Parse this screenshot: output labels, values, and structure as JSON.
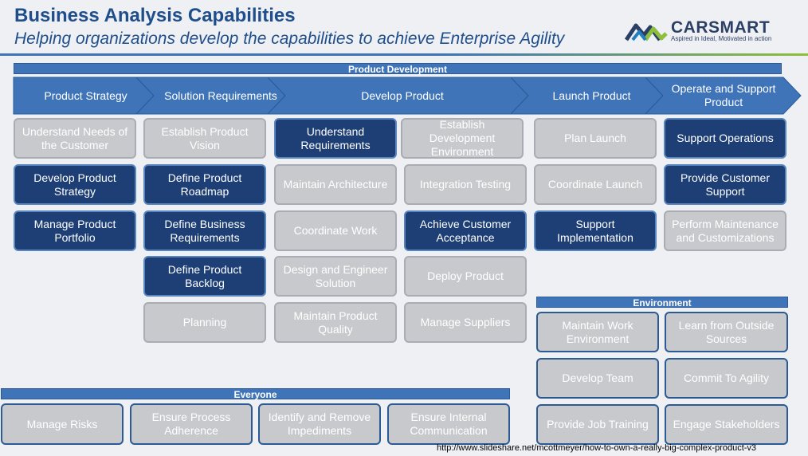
{
  "header": {
    "title": "Business Analysis Capabilities",
    "subtitle": "Helping organizations develop the capabilities to achieve Enterprise Agility"
  },
  "logo": {
    "name": "CARSMART",
    "tagline": "Aspired in Ideal, Motivated in action",
    "icon": "carsmart-mountain-logo-icon"
  },
  "bands": {
    "product_development": "Product Development",
    "environment": "Environment",
    "everyone": "Everyone"
  },
  "phases": [
    "Product Strategy",
    "Solution Requirements",
    "Develop Product",
    "Launch Product",
    "Operate and Support Product"
  ],
  "capabilities": {
    "product_strategy": [
      "Understand Needs of the Customer",
      "Develop Product Strategy",
      "Manage Product Portfolio"
    ],
    "solution_requirements": [
      "Establish Product Vision",
      "Define Product Roadmap",
      "Define Business Requirements",
      "Define Product Backlog",
      "Planning"
    ],
    "develop_product_a": [
      "Understand Requirements",
      "Maintain Architecture",
      "Coordinate Work",
      "Design and Engineer Solution",
      "Maintain Product Quality"
    ],
    "develop_product_b": [
      "Establish Development Environment",
      "Integration Testing",
      "Achieve Customer Acceptance",
      "Deploy Product",
      "Manage Suppliers"
    ],
    "launch_product": [
      "Plan Launch",
      "Coordinate Launch",
      "Support Implementation"
    ],
    "operate_support": [
      "Support Operations",
      "Provide  Customer Support",
      "Perform Maintenance and Customizations"
    ],
    "environment": [
      "Maintain Work Environment",
      "Learn from Outside Sources",
      "Develop Team",
      "Commit To Agility",
      "Provide Job Training",
      "Engage Stakeholders"
    ],
    "everyone": [
      "Manage Risks",
      "Ensure Process Adherence",
      "Identify and Remove Impediments",
      "Ensure Internal Communication"
    ]
  },
  "colors": {
    "highlight": "#1d3f75",
    "neutral": "#c7c9cc",
    "band": "#3f74b8",
    "title": "#1f4e8c"
  },
  "source_url": "http://www.slideshare.net/mcottmeyer/how-to-own-a-really-big-complex-product-v3"
}
